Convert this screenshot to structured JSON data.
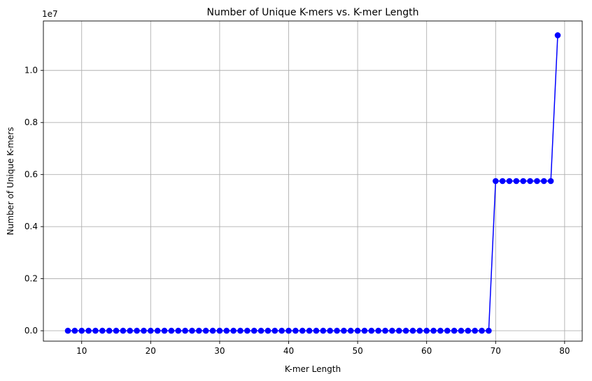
{
  "chart_data": {
    "type": "line",
    "title": "Number of Unique K-mers vs. K-mer Length",
    "xlabel": "K-mer Length",
    "ylabel": "Number of Unique K-mers",
    "y_offset_label": "1e7",
    "xlim": [
      4.45,
      82.55
    ],
    "ylim": [
      -0.04,
      1.19
    ],
    "x_ticks": [
      10,
      20,
      30,
      40,
      50,
      60,
      70,
      80
    ],
    "y_ticks": [
      0.0,
      0.2,
      0.4,
      0.6,
      0.8,
      1.0
    ],
    "y_tick_labels": [
      "0.0",
      "0.2",
      "0.4",
      "0.6",
      "0.8",
      "1.0"
    ],
    "grid": true,
    "series": [
      {
        "color": "#0000ff",
        "marker": "circle",
        "x": [
          8,
          9,
          10,
          11,
          12,
          13,
          14,
          15,
          16,
          17,
          18,
          19,
          20,
          21,
          22,
          23,
          24,
          25,
          26,
          27,
          28,
          29,
          30,
          31,
          32,
          33,
          34,
          35,
          36,
          37,
          38,
          39,
          40,
          41,
          42,
          43,
          44,
          45,
          46,
          47,
          48,
          49,
          50,
          51,
          52,
          53,
          54,
          55,
          56,
          57,
          58,
          59,
          60,
          61,
          62,
          63,
          64,
          65,
          66,
          67,
          68,
          69,
          70,
          71,
          72,
          73,
          74,
          75,
          76,
          77,
          78,
          79
        ],
        "y": [
          0,
          0,
          0,
          0,
          0,
          0,
          0,
          0,
          0,
          0,
          0,
          0,
          0,
          0,
          0,
          0,
          0,
          0,
          0,
          0,
          0,
          0,
          0,
          0,
          0,
          0,
          0,
          0,
          0,
          0,
          0,
          0,
          0,
          0,
          0,
          0,
          0,
          0,
          0,
          0,
          0,
          0,
          0,
          0,
          0,
          0,
          0,
          0,
          0,
          0,
          0,
          0,
          0,
          0,
          0,
          0,
          0,
          0,
          0,
          0,
          0,
          0,
          0.575,
          0.575,
          0.575,
          0.575,
          0.575,
          0.575,
          0.575,
          0.575,
          0.575,
          1.135
        ]
      }
    ]
  }
}
